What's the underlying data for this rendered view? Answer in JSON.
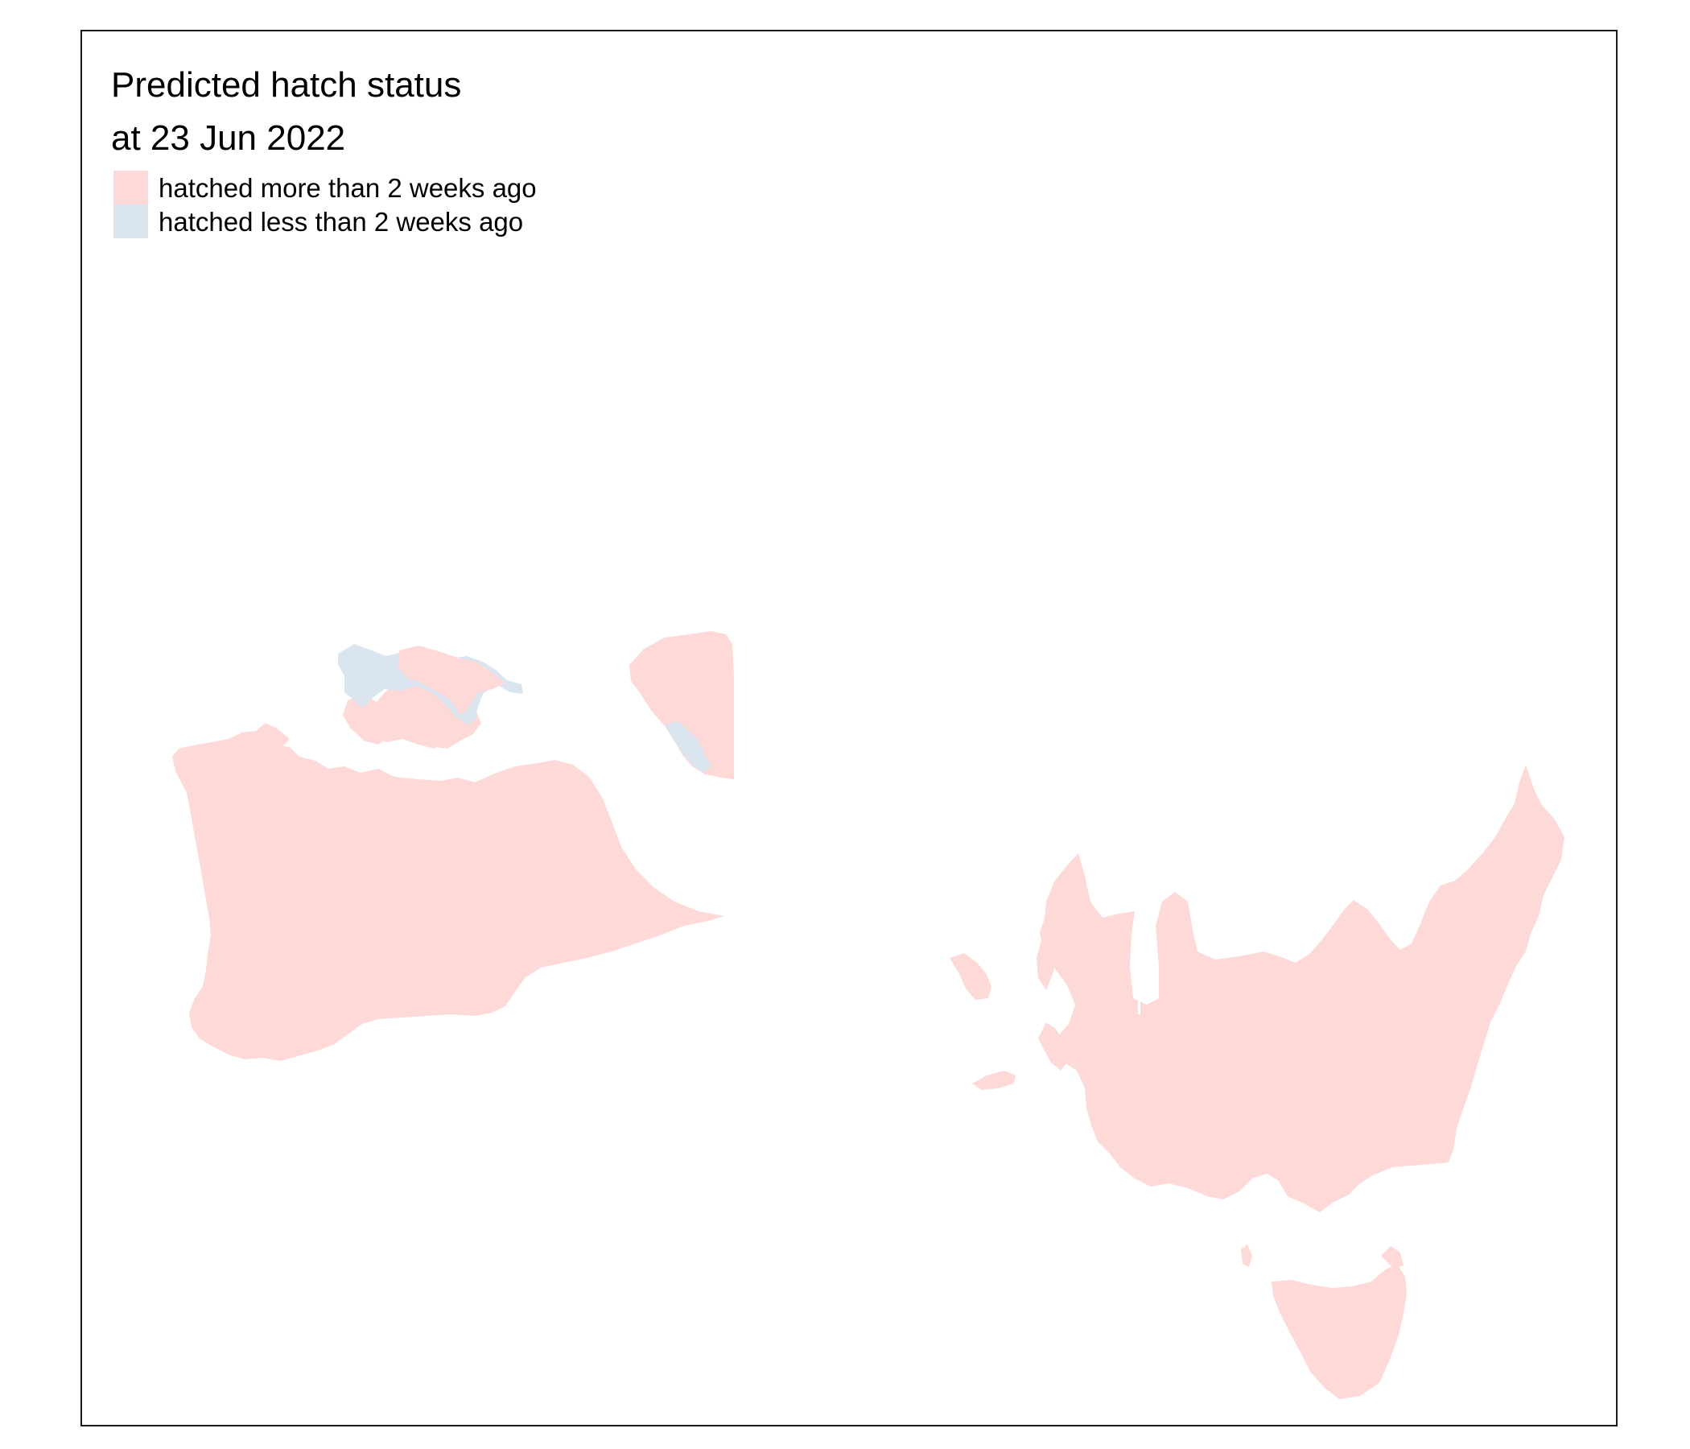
{
  "title": {
    "line1": "Predicted hatch status",
    "line2": "at 23 Jun 2022"
  },
  "legend": {
    "items": [
      {
        "label": "hatched more than 2 weeks ago",
        "color": "#fdd9d8"
      },
      {
        "label": "hatched less than 2 weeks ago",
        "color": "#dae5f0"
      }
    ]
  },
  "colors": {
    "frame": "#1a1a1a",
    "background": "#ffffff"
  }
}
